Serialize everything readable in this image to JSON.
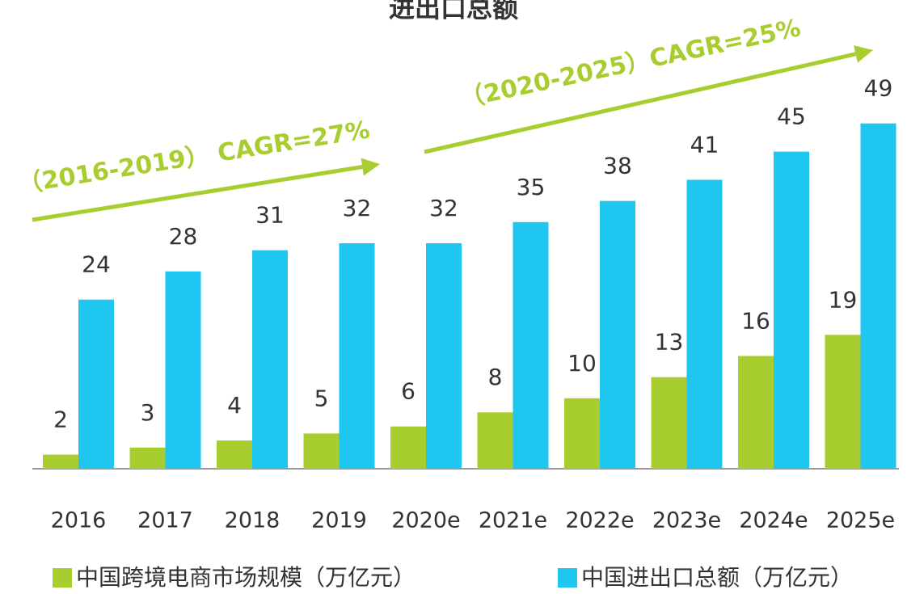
{
  "chart_data": {
    "type": "bar",
    "title": "进出口总额",
    "categories": [
      "2016",
      "2017",
      "2018",
      "2019",
      "2020e",
      "2021e",
      "2022e",
      "2023e",
      "2024e",
      "2025e"
    ],
    "series": [
      {
        "name": "中国跨境电商市场规模（万亿元）",
        "color": "#a8cd2f",
        "values": [
          2,
          3,
          4,
          5,
          6,
          8,
          10,
          13,
          16,
          19
        ]
      },
      {
        "name": "中国进出口总额（万亿元）",
        "color": "#1fc7f0",
        "values": [
          24,
          28,
          31,
          32,
          32,
          35,
          38,
          41,
          45,
          49
        ]
      }
    ],
    "annotations": [
      "（2016-2019） CAGR=27%",
      "（2020-2025）CAGR=25%"
    ],
    "annotation_color": "#a8cd2f"
  }
}
